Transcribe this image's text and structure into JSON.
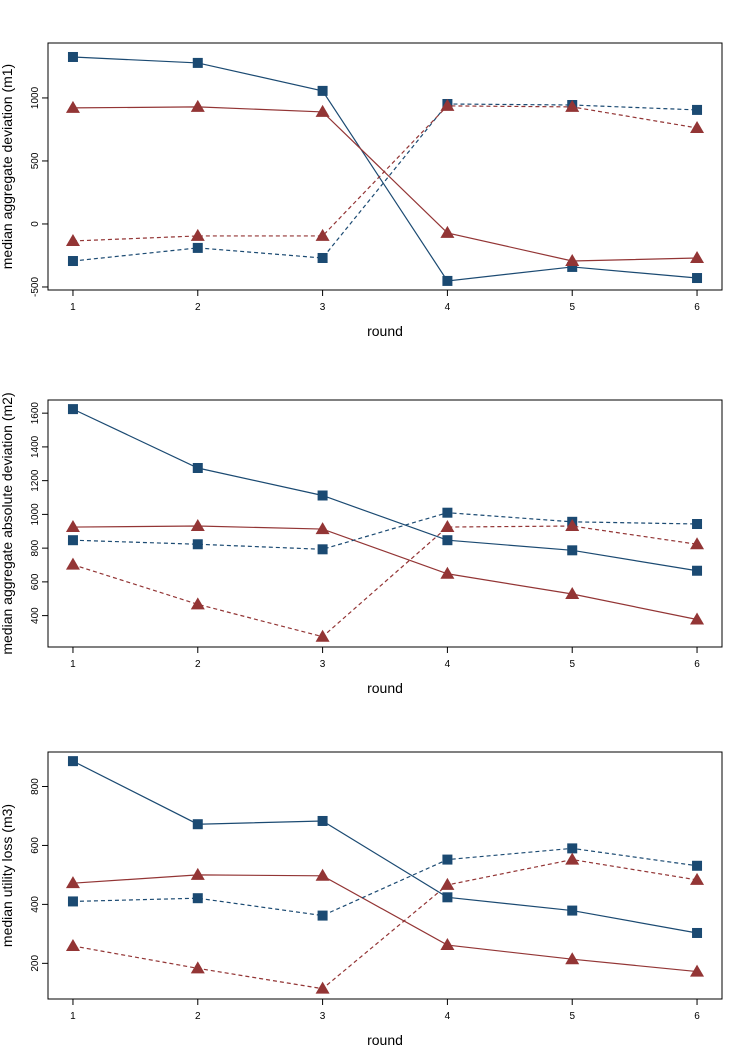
{
  "chart_data": [
    {
      "type": "line",
      "x_label": "round",
      "y_label": "median aggregate deviation (m1)",
      "x": [
        1,
        2,
        3,
        4,
        5,
        6
      ],
      "xlim": [
        0.8,
        6.2
      ],
      "xticks": [
        1,
        2,
        3,
        4,
        5,
        6
      ],
      "ylim": [
        -524,
        1436
      ],
      "yticks": [
        -500,
        0,
        500,
        1000
      ],
      "series": [
        {
          "color": "#1b4a72",
          "marker": "square",
          "dashed": false,
          "values": [
            1325,
            1278,
            1056,
            -452,
            -341,
            -429
          ]
        },
        {
          "color": "#933535",
          "marker": "triangle",
          "dashed": false,
          "values": [
            921,
            929,
            889,
            -71,
            -294,
            -270
          ]
        },
        {
          "color": "#1b4a72",
          "marker": "square",
          "dashed": true,
          "values": [
            -294,
            -190,
            -270,
            952,
            944,
            905
          ]
        },
        {
          "color": "#933535",
          "marker": "triangle",
          "dashed": true,
          "values": [
            -135,
            -95,
            -95,
            937,
            929,
            762
          ]
        }
      ]
    },
    {
      "type": "line",
      "x_label": "round",
      "y_label": "median aggregate absolute deviation (m2)",
      "x": [
        1,
        2,
        3,
        4,
        5,
        6
      ],
      "xlim": [
        0.8,
        6.2
      ],
      "xticks": [
        1,
        2,
        3,
        4,
        5,
        6
      ],
      "ylim": [
        214,
        1678
      ],
      "yticks": [
        400,
        600,
        800,
        1000,
        1200,
        1400,
        1600
      ],
      "series": [
        {
          "color": "#1b4a72",
          "marker": "square",
          "dashed": false,
          "values": [
            1624,
            1275,
            1112,
            847,
            787,
            666
          ]
        },
        {
          "color": "#933535",
          "marker": "triangle",
          "dashed": false,
          "values": [
            925,
            931,
            913,
            648,
            528,
            377
          ]
        },
        {
          "color": "#1b4a72",
          "marker": "square",
          "dashed": true,
          "values": [
            847,
            823,
            793,
            1010,
            956,
            943
          ]
        },
        {
          "color": "#933535",
          "marker": "triangle",
          "dashed": true,
          "values": [
            702,
            467,
            275,
            925,
            931,
            823
          ]
        }
      ]
    },
    {
      "type": "line",
      "x_label": "round",
      "y_label": "median utility loss (m3)",
      "x": [
        1,
        2,
        3,
        4,
        5,
        6
      ],
      "xlim": [
        0.8,
        6.2
      ],
      "xticks": [
        1,
        2,
        3,
        4,
        5,
        6
      ],
      "ylim": [
        79,
        917
      ],
      "yticks": [
        200,
        400,
        600,
        800
      ],
      "series": [
        {
          "color": "#1b4a72",
          "marker": "square",
          "dashed": false,
          "values": [
            886,
            672,
            683,
            424,
            379,
            303
          ]
        },
        {
          "color": "#933535",
          "marker": "triangle",
          "dashed": false,
          "values": [
            472,
            500,
            497,
            262,
            214,
            172
          ]
        },
        {
          "color": "#1b4a72",
          "marker": "square",
          "dashed": true,
          "values": [
            410,
            421,
            362,
            552,
            590,
            531
          ]
        },
        {
          "color": "#933535",
          "marker": "triangle",
          "dashed": true,
          "values": [
            259,
            183,
            114,
            466,
            552,
            483
          ]
        }
      ]
    }
  ]
}
